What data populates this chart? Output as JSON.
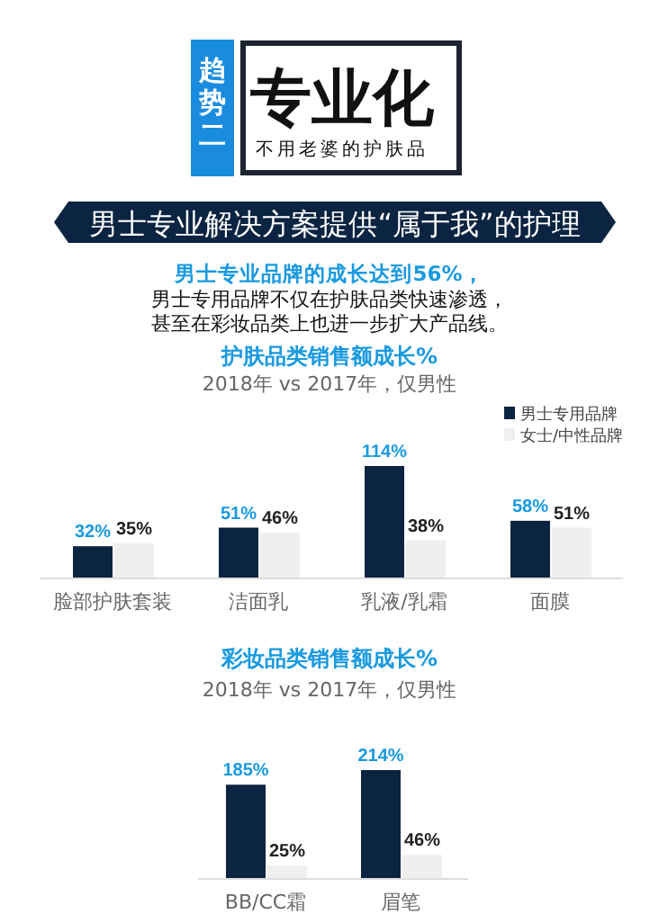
{
  "chart_data": [
    {
      "type": "other",
      "title": "专业化",
      "subtitle": "不用老婆的护肤品",
      "annotations": [
        "趋势二",
        "男士专业解决方案提供“属于我”的护理",
        "男士专业品牌的成长达到56%，",
        "男士专用品牌不仅在护肤品类快速渗透，",
        "甚至在彩妆品类上也进一步扩大产品线。"
      ]
    },
    {
      "type": "bar",
      "title": "护肤品类销售额成长%",
      "subtitle": "2018年 vs 2017年，仅男性",
      "categories": [
        "脸部护肤套装",
        "洁面乳",
        "乳液/乳霜",
        "面膜"
      ],
      "series": [
        {
          "name": "男士专用品牌",
          "color": "#0b2441",
          "values": [
            32,
            51,
            114,
            58
          ],
          "value_labels": [
            "32%",
            "51%",
            "114%",
            "58%"
          ]
        },
        {
          "name": "女士/中性品牌",
          "color": "#efefef",
          "values": [
            35,
            46,
            38,
            51
          ],
          "value_labels": [
            "35%",
            "46%",
            "38%",
            "51%"
          ]
        }
      ],
      "legend": "top right"
    },
    {
      "type": "bar",
      "title": "彩妆品类销售额成长%",
      "subtitle": "2018年 vs 2017年，仅男性",
      "categories": [
        "BB/CC霜",
        "眉笔"
      ],
      "series": [
        {
          "color": "#0b2441",
          "values": [
            185,
            214
          ],
          "value_labels": [
            "185%",
            "214%"
          ]
        },
        {
          "color": "#efefef",
          "values": [
            25,
            46
          ],
          "value_labels": [
            "25%",
            "46%"
          ]
        }
      ]
    }
  ]
}
